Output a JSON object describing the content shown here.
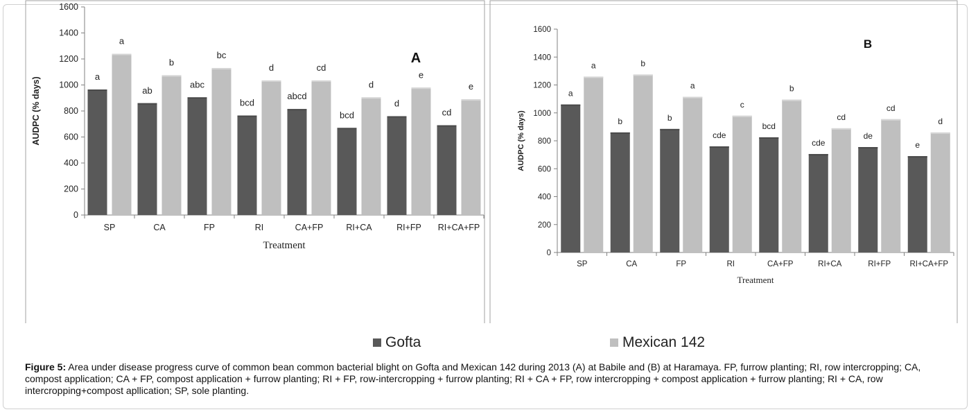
{
  "chart_data": [
    {
      "type": "bar",
      "panel_label": "A",
      "categories": [
        "SP",
        "CA",
        "FP",
        "RI",
        "CA+FP",
        "RI+CA",
        "RI+FP",
        "RI+CA+FP"
      ],
      "series": [
        {
          "name": "Gofta",
          "values": [
            965,
            860,
            905,
            765,
            815,
            670,
            760,
            690
          ],
          "letters": [
            "a",
            "ab",
            "abc",
            "bcd",
            "abcd",
            "bcd",
            "d",
            "cd"
          ]
        },
        {
          "name": "Mexican 142",
          "values": [
            1240,
            1075,
            1130,
            1035,
            1035,
            905,
            980,
            890
          ],
          "letters": [
            "a",
            "b",
            "bc",
            "d",
            "cd",
            "d",
            "e",
            "e"
          ]
        }
      ],
      "xlabel": "Treatment",
      "ylabel": "AUDPC (% days)",
      "ylim": [
        0,
        1600
      ],
      "yticks": [
        0,
        200,
        400,
        600,
        800,
        1000,
        1200,
        1400,
        1600
      ]
    },
    {
      "type": "bar",
      "panel_label": "B",
      "categories": [
        "SP",
        "CA",
        "FP",
        "RI",
        "CA+FP",
        "RI+CA",
        "RI+FP",
        "RI+CA+FP"
      ],
      "series": [
        {
          "name": "Gofta",
          "values": [
            1060,
            860,
            885,
            760,
            825,
            705,
            755,
            690
          ],
          "letters": [
            "a",
            "b",
            "b",
            "cde",
            "bcd",
            "cde",
            "de",
            "e"
          ]
        },
        {
          "name": "Mexican 142",
          "values": [
            1260,
            1275,
            1115,
            980,
            1095,
            890,
            955,
            860
          ],
          "letters": [
            "a",
            "b",
            "a",
            "c",
            "b",
            "cd",
            "cd",
            "d"
          ]
        }
      ],
      "xlabel": "Treatment",
      "ylabel": "AUDPC (% days)",
      "ylim": [
        0,
        1600
      ],
      "yticks": [
        0,
        200,
        400,
        600,
        800,
        1000,
        1200,
        1400,
        1600
      ]
    }
  ],
  "colors": {
    "gofta": "#595959",
    "mexican": "#bfbfbf",
    "axis": "#808080"
  },
  "legend": [
    {
      "name": "Gofta",
      "color": "#595959"
    },
    {
      "name": "Mexican 142",
      "color": "#bfbfbf"
    }
  ],
  "caption": {
    "label": "Figure 5:",
    "text": " Area under disease progress curve of common bean common bacterial blight on Gofta and Mexican 142 during 2013 (A) at Babile and (B) at Haramaya. FP, furrow planting; RI, row intercropping; CA, compost application; CA + FP, compost application + furrow planting; RI + FP, row-intercropping + furrow planting; RI + CA + FP, row intercropping + compost application + furrow planting; RI + CA, row intercropping+compost apllication; SP, sole planting."
  }
}
